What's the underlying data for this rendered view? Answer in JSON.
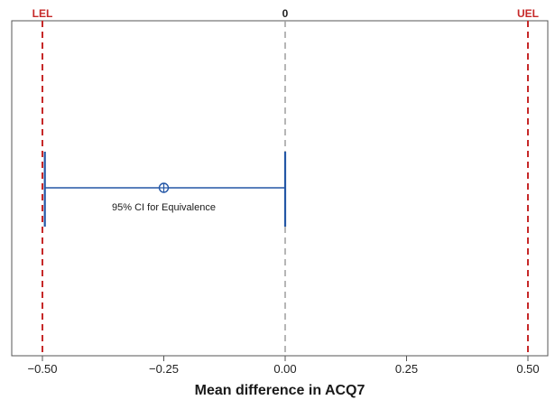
{
  "chart_data": {
    "type": "scatter",
    "xlabel": "Mean difference in ACQ7",
    "xlim": [
      -0.515,
      0.515
    ],
    "xticks": [
      {
        "value": -0.5,
        "label": "−0.50"
      },
      {
        "value": -0.25,
        "label": "−0.25"
      },
      {
        "value": 0.0,
        "label": "0.00"
      },
      {
        "value": 0.25,
        "label": "0.25"
      },
      {
        "value": 0.5,
        "label": "0.50"
      }
    ],
    "reference_lines": [
      {
        "label": "LEL",
        "value": -0.5,
        "color": "#c62828",
        "style": "dashed"
      },
      {
        "label": "0",
        "value": 0.0,
        "color": "#9e9e9e",
        "style": "dashed"
      },
      {
        "label": "UEL",
        "value": 0.5,
        "color": "#c62828",
        "style": "dashed"
      }
    ],
    "interval": {
      "label": "95% CI for Equivalence",
      "estimate": -0.25,
      "lower": -0.495,
      "upper": 0.0,
      "color": "#2457a6"
    },
    "grid": false
  }
}
